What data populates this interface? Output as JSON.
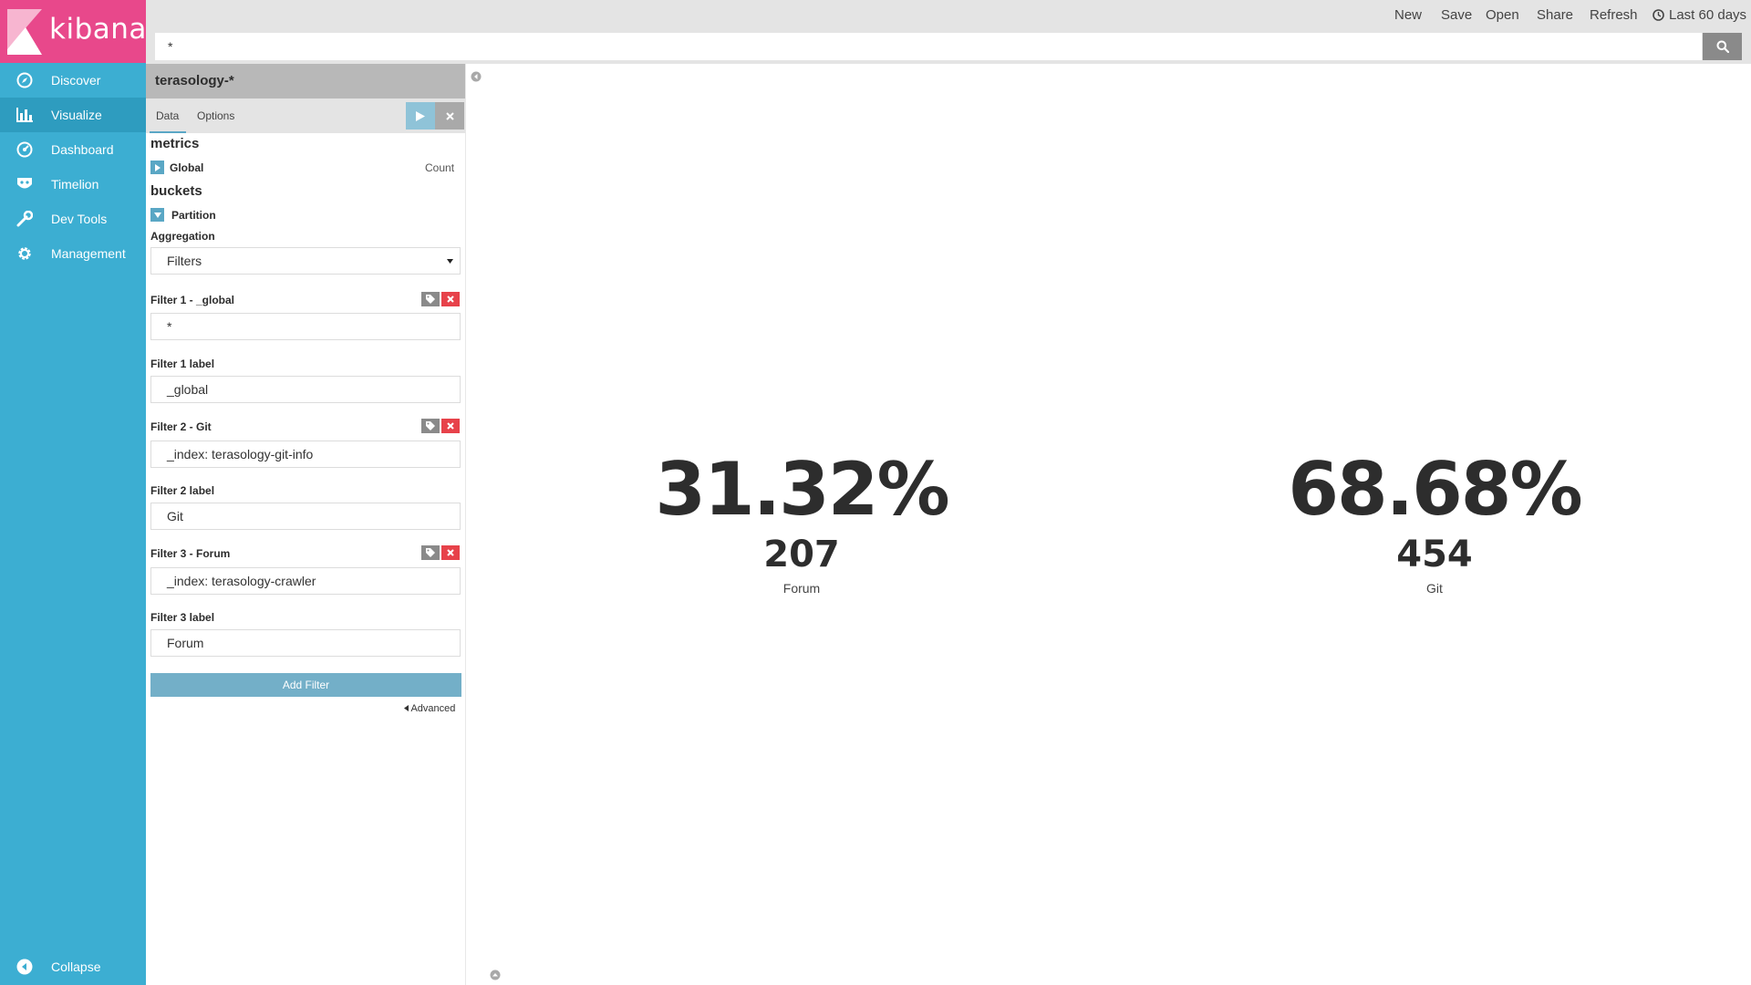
{
  "app": {
    "brand": "kibana"
  },
  "nav": {
    "items": [
      {
        "label": "Discover",
        "icon": "compass-icon"
      },
      {
        "label": "Visualize",
        "icon": "bar-chart-icon",
        "active": true
      },
      {
        "label": "Dashboard",
        "icon": "dashboard-gauge-icon"
      },
      {
        "label": "Timelion",
        "icon": "timelion-mask-icon"
      },
      {
        "label": "Dev Tools",
        "icon": "wrench-icon"
      },
      {
        "label": "Management",
        "icon": "gear-icon"
      }
    ],
    "collapse_label": "Collapse"
  },
  "topbar": {
    "new": "New",
    "save": "Save",
    "open": "Open",
    "share": "Share",
    "refresh": "Refresh",
    "timepicker": "Last 60 days"
  },
  "query": {
    "value": "*"
  },
  "editor": {
    "index_pattern": "terasology-*",
    "tabs": {
      "data": "Data",
      "options": "Options"
    },
    "metrics_title": "metrics",
    "metric_agg": {
      "label": "Global",
      "value": "Count"
    },
    "buckets_title": "buckets",
    "bucket_agg": {
      "label": "Partition"
    },
    "aggregation_label": "Aggregation",
    "aggregation_value": "Filters",
    "filters": [
      {
        "title": "Filter 1 - _global",
        "query": "*",
        "label_title": "Filter 1 label",
        "label": "_global"
      },
      {
        "title": "Filter 2 - Git",
        "query": "_index: terasology-git-info",
        "label_title": "Filter 2 label",
        "label": "Git"
      },
      {
        "title": "Filter 3 - Forum",
        "query": "_index: terasology-crawler",
        "label_title": "Filter 3 label",
        "label": "Forum"
      }
    ],
    "add_filter_label": "Add Filter",
    "advanced_label": "Advanced"
  },
  "metrics": [
    {
      "percent": "31.32%",
      "count": "207",
      "label": "Forum"
    },
    {
      "percent": "68.68%",
      "count": "454",
      "label": "Git"
    }
  ],
  "colors": {
    "nav_bg": "#3caed2",
    "logo_bg": "#e8488b",
    "accent": "#5aa7c5",
    "danger": "#e7424a"
  }
}
